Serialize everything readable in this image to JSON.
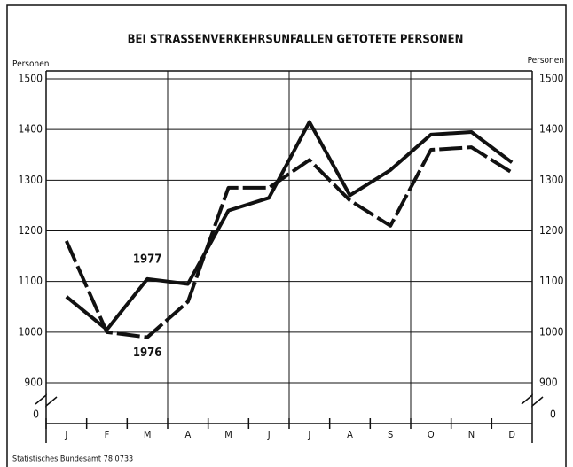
{
  "chart_data": {
    "type": "line",
    "title": "BEI STRASSENVERKEHRSUNFALLEN GETOTETE PERSONEN",
    "y_label": "Personen",
    "y2_label": "Personen",
    "source": "Statistisches Bundesamt 78 0733",
    "categories": [
      "J",
      "F",
      "M",
      "A",
      "M",
      "J",
      "J",
      "A",
      "S",
      "O",
      "N",
      "D"
    ],
    "series": [
      {
        "name": "1976",
        "color": "#111111",
        "dashed": true,
        "values": [
          1180,
          1000,
          990,
          1060,
          1285,
          1285,
          1340,
          1260,
          1210,
          1360,
          1365,
          1315
        ]
      },
      {
        "name": "1977",
        "color": "#111111",
        "dashed": false,
        "values": [
          1070,
          1005,
          1105,
          1095,
          1240,
          1265,
          1415,
          1270,
          1320,
          1390,
          1395,
          1335
        ]
      }
    ],
    "ylim": [
      900,
      1500
    ],
    "yticks": [
      900,
      1000,
      1100,
      1200,
      1300,
      1400,
      1500
    ],
    "y2lim": [
      900,
      1500
    ],
    "y2ticks": [
      900,
      1000,
      1100,
      1200,
      1300,
      1400,
      1500
    ],
    "axis_break_tick": 0,
    "grid": true
  }
}
